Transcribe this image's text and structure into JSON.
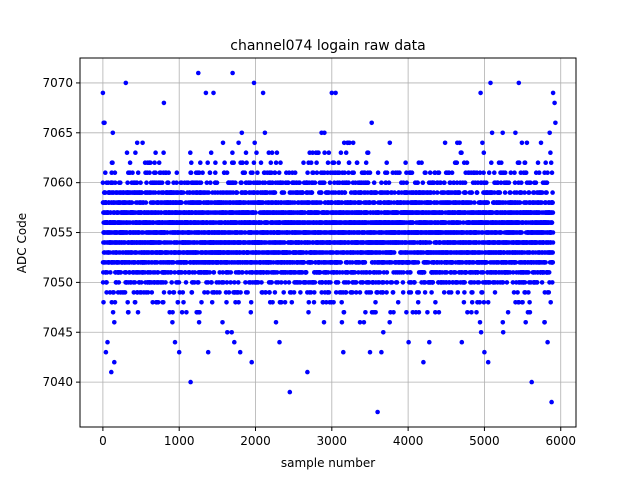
{
  "chart_data": {
    "type": "scatter",
    "title": "channel074 logain raw data",
    "xlabel": "sample number",
    "ylabel": "ADC Code",
    "xlim": [
      -300,
      6200
    ],
    "ylim": [
      7035.5,
      7072.5
    ],
    "x_ticks": [
      0,
      1000,
      2000,
      3000,
      4000,
      5000,
      6000
    ],
    "y_ticks": [
      7040,
      7045,
      7050,
      7055,
      7060,
      7065,
      7070
    ],
    "grid": true,
    "marker_color": "#0000ff",
    "series": [
      {
        "n_samples": 5900,
        "value_distribution": "integer ADC codes concentrated between 7048 and 7062, centred near 7055",
        "outliers": [
          {
            "x": 0,
            "y": 7069
          },
          {
            "x": 10,
            "y": 7066
          },
          {
            "x": 40,
            "y": 7043
          },
          {
            "x": 60,
            "y": 7044
          },
          {
            "x": 110,
            "y": 7041
          },
          {
            "x": 150,
            "y": 7042
          },
          {
            "x": 300,
            "y": 7070
          },
          {
            "x": 800,
            "y": 7068
          },
          {
            "x": 1000,
            "y": 7043
          },
          {
            "x": 1150,
            "y": 7040
          },
          {
            "x": 1250,
            "y": 7071
          },
          {
            "x": 1350,
            "y": 7069
          },
          {
            "x": 1380,
            "y": 7043
          },
          {
            "x": 1450,
            "y": 7069
          },
          {
            "x": 1700,
            "y": 7071
          },
          {
            "x": 1800,
            "y": 7043
          },
          {
            "x": 1950,
            "y": 7042
          },
          {
            "x": 1980,
            "y": 7070
          },
          {
            "x": 2100,
            "y": 7069
          },
          {
            "x": 2450,
            "y": 7039
          },
          {
            "x": 2680,
            "y": 7041
          },
          {
            "x": 3000,
            "y": 7069
          },
          {
            "x": 3050,
            "y": 7069
          },
          {
            "x": 3150,
            "y": 7043
          },
          {
            "x": 3500,
            "y": 7043
          },
          {
            "x": 3600,
            "y": 7037
          },
          {
            "x": 3650,
            "y": 7043
          },
          {
            "x": 4200,
            "y": 7042
          },
          {
            "x": 4950,
            "y": 7069
          },
          {
            "x": 5000,
            "y": 7043
          },
          {
            "x": 5080,
            "y": 7070
          },
          {
            "x": 5050,
            "y": 7042
          },
          {
            "x": 5450,
            "y": 7070
          },
          {
            "x": 5620,
            "y": 7040
          },
          {
            "x": 5880,
            "y": 7038
          },
          {
            "x": 5900,
            "y": 7069
          },
          {
            "x": 5920,
            "y": 7068
          },
          {
            "x": 5930,
            "y": 7066
          }
        ]
      }
    ]
  }
}
